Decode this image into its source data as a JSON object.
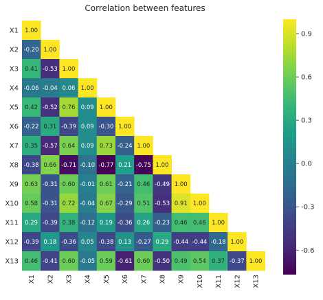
{
  "chart_data": {
    "type": "heatmap",
    "title": "Correlation between features",
    "xlabel": "",
    "ylabel": "",
    "mask": "upper-triangle",
    "row_labels": [
      "X1",
      "X2",
      "X3",
      "X4",
      "X5",
      "X6",
      "X7",
      "X8",
      "X9",
      "X10",
      "X11",
      "X12",
      "X13"
    ],
    "col_labels": [
      "X1",
      "X2",
      "X3",
      "X4",
      "X5",
      "X6",
      "X7",
      "X8",
      "X9",
      "X10",
      "X11",
      "X12",
      "X13"
    ],
    "values": [
      [
        1.0
      ],
      [
        -0.2,
        1.0
      ],
      [
        0.41,
        -0.53,
        1.0
      ],
      [
        -0.06,
        -0.04,
        0.06,
        1.0
      ],
      [
        0.42,
        -0.52,
        0.76,
        0.09,
        1.0
      ],
      [
        -0.22,
        0.31,
        -0.39,
        0.09,
        -0.3,
        1.0
      ],
      [
        0.35,
        -0.57,
        0.64,
        0.09,
        0.73,
        -0.24,
        1.0
      ],
      [
        -0.38,
        0.66,
        -0.71,
        -0.1,
        -0.77,
        0.21,
        -0.75,
        1.0
      ],
      [
        0.63,
        -0.31,
        0.6,
        -0.01,
        0.61,
        -0.21,
        0.46,
        -0.49,
        1.0
      ],
      [
        0.58,
        -0.31,
        0.72,
        -0.04,
        0.67,
        -0.29,
        0.51,
        -0.53,
        0.91,
        1.0
      ],
      [
        0.29,
        -0.39,
        0.38,
        -0.12,
        0.19,
        -0.36,
        0.26,
        -0.23,
        0.46,
        0.46,
        1.0
      ],
      [
        -0.39,
        0.18,
        -0.36,
        0.05,
        -0.38,
        0.13,
        -0.27,
        0.29,
        -0.44,
        -0.44,
        -0.18,
        1.0
      ],
      [
        0.46,
        -0.41,
        0.6,
        -0.05,
        0.59,
        -0.61,
        0.6,
        -0.5,
        0.49,
        0.54,
        0.37,
        -0.37,
        1.0
      ]
    ],
    "value_labels": [
      [
        "1.00"
      ],
      [
        "-0.20",
        "1.00"
      ],
      [
        "0.41",
        "-0.53",
        "1.00"
      ],
      [
        "-0.06",
        "-0.04",
        "0.06",
        "1.00"
      ],
      [
        "0.42",
        "-0.52",
        "0.76",
        "0.09",
        "1.00"
      ],
      [
        "-0.22",
        "0.31",
        "-0.39",
        "0.09",
        "-0.30",
        "1.00"
      ],
      [
        "0.35",
        "-0.57",
        "0.64",
        "0.09",
        "0.73",
        "-0.24",
        "1.00"
      ],
      [
        "-0.38",
        "0.66",
        "-0.71",
        "-0.10",
        "-0.77",
        "0.21",
        "-0.75",
        "1.00"
      ],
      [
        "0.63",
        "-0.31",
        "0.60",
        "-0.01",
        "0.61",
        "-0.21",
        "0.46",
        "-0.49",
        "1.00"
      ],
      [
        "0.58",
        "-0.31",
        "0.72",
        "-0.04",
        "0.67",
        "-0.29",
        "0.51",
        "-0.53",
        "0.91",
        "1.00"
      ],
      [
        "0.29",
        "-0.39",
        "0.38",
        "-0.12",
        "0.19",
        "-0.36",
        "0.26",
        "-0.23",
        "0.46",
        "0.46",
        "1.00"
      ],
      [
        "-0.39",
        "0.18",
        "-0.36",
        "0.05",
        "-0.38",
        "0.13",
        "-0.27",
        "0.29",
        "-0.44",
        "-0.44",
        "-0.18",
        "1.00"
      ],
      [
        "0.46",
        "-0.41",
        "0.60",
        "-0.05",
        "0.59",
        "-0.61",
        "0.60",
        "-0.50",
        "0.49",
        "0.54",
        "0.37",
        "-0.37",
        "1.00"
      ]
    ],
    "colormap": "viridis",
    "vmin": -0.77,
    "vmax": 1.0,
    "colorbar": {
      "ticks": [
        0.9,
        0.6,
        0.3,
        0.0,
        -0.3,
        -0.6
      ],
      "tick_labels": [
        "0.9",
        "0.6",
        "0.3",
        "0.0",
        "-0.3",
        "-0.6"
      ]
    },
    "grid": false,
    "legend": "none"
  },
  "colors": {
    "background": "#ffffff",
    "text": "#262626",
    "label_light": "#ffffff",
    "label_dark": "#262626",
    "viridis_stops": [
      "#440154",
      "#482878",
      "#3e4989",
      "#31688e",
      "#26828e",
      "#1f9e89",
      "#35b779",
      "#6ece58",
      "#b5de2b",
      "#fde725"
    ]
  }
}
